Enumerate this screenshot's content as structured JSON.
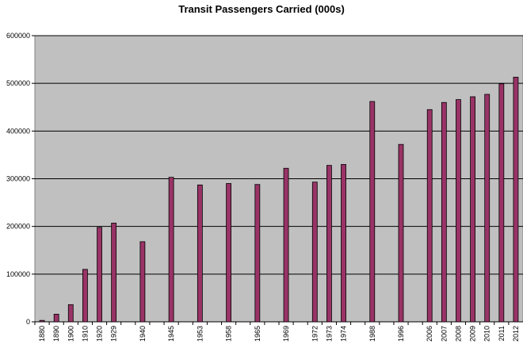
{
  "chart_data": {
    "type": "bar",
    "title": "Transit Passengers Carried (000s)",
    "xlabel": "",
    "ylabel": "",
    "ylim": [
      0,
      600000
    ],
    "yticks": [
      "0",
      "100000",
      "200000",
      "300000",
      "400000",
      "500000",
      "600000"
    ],
    "grid": true,
    "legend": "none",
    "plot_background": "#c0c0c0",
    "bar_color": "#993366",
    "categories": [
      "1880",
      "1890",
      "1900",
      "1910",
      "1920",
      "1929",
      "",
      "1940",
      "",
      "1945",
      "",
      "1953",
      "",
      "1958",
      "",
      "1965",
      "",
      "1969",
      "",
      "1972",
      "1973",
      "1974",
      "",
      "1988",
      "",
      "1996",
      "",
      "2006",
      "2007",
      "2008",
      "2009",
      "2010",
      "2011",
      "2012"
    ],
    "values": [
      3000,
      16000,
      36000,
      110000,
      198000,
      207000,
      null,
      168000,
      null,
      303000,
      null,
      287000,
      null,
      290000,
      null,
      288000,
      null,
      322000,
      null,
      293000,
      328000,
      330000,
      null,
      462000,
      null,
      372000,
      null,
      445000,
      460000,
      466000,
      472000,
      477000,
      499000,
      513000
    ]
  }
}
